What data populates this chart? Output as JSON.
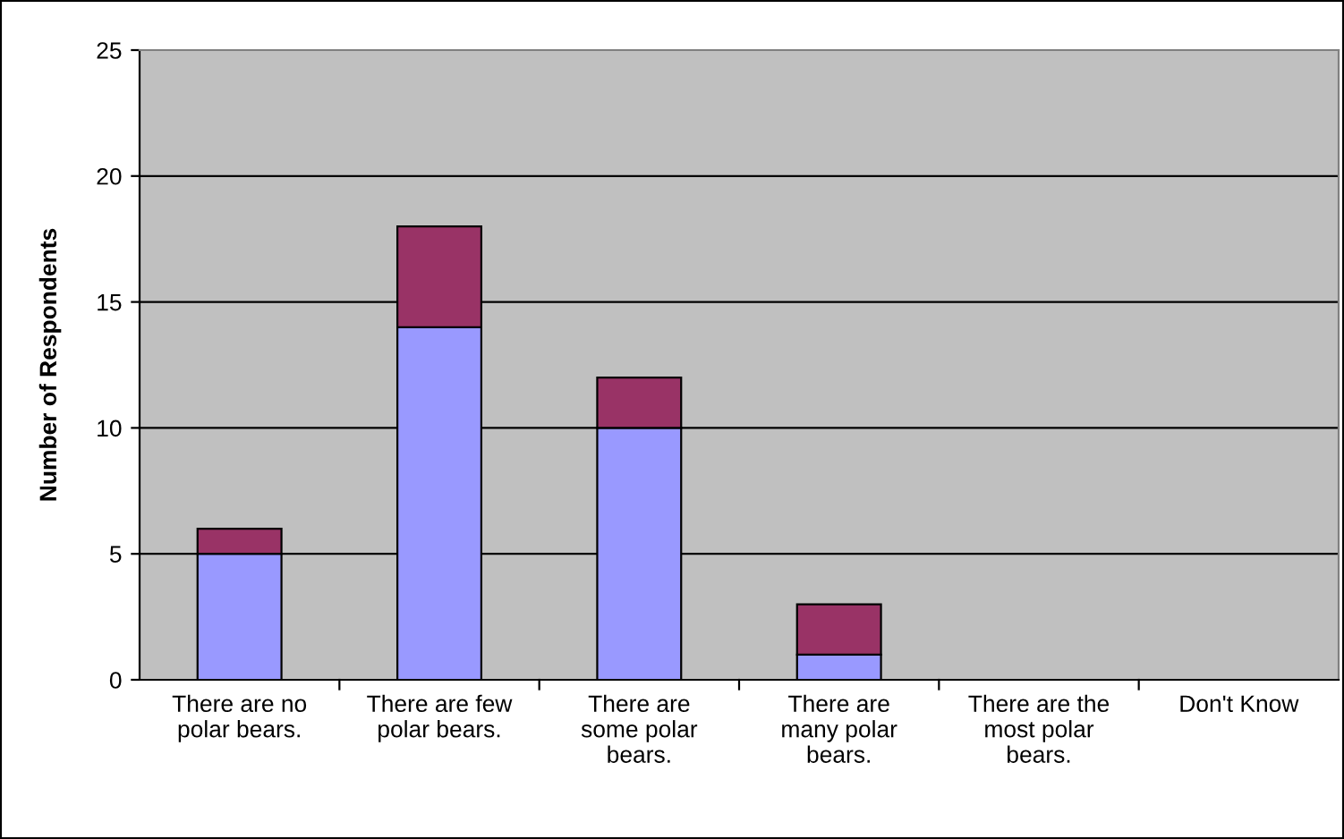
{
  "chart_data": {
    "type": "bar",
    "stacked": true,
    "ylabel": "Number of Respondents",
    "categories": [
      "There are no\npolar bears.",
      "There are few\npolar bears.",
      "There are\nsome polar\nbears.",
      "There are\nmany polar\nbears.",
      "There are the\nmost polar\nbears.",
      "Don't Know"
    ],
    "series": [
      {
        "color": "#9999ff",
        "values": [
          5,
          14,
          10,
          1,
          0,
          0
        ]
      },
      {
        "color": "#993366",
        "values": [
          1,
          4,
          2,
          2,
          0,
          0
        ]
      }
    ],
    "ylim": [
      0,
      25
    ],
    "yticks": [
      0,
      5,
      10,
      15,
      20,
      25
    ],
    "grid": "y",
    "legend": false
  }
}
